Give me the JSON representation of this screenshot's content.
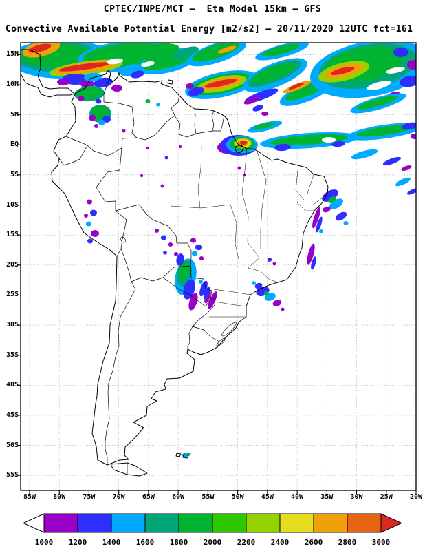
{
  "header": {
    "title_line1": "CPTEC/INPE/MCT –  Eta Model 15km – GFS",
    "title_line2": "Convective Available Potential Energy [m2/s2] – 20/11/2020 12UTC fct=161"
  },
  "chart_data": {
    "type": "heatmap",
    "title": "CPTEC/INPE/MCT – Eta Model 15km – GFS",
    "subtitle": "Convective Available Potential Energy [m2/s2] – 20/11/2020 12UTC fct=161",
    "variable": "Convective Available Potential Energy",
    "units": "m2/s2",
    "model": "Eta Model 15km",
    "initial_condition": "GFS",
    "valid": "20/11/2020 12UTC",
    "forecast_label": "fct=161",
    "grid": "5-degree dotted graticule",
    "background_note": "values below 1000 m2/s2 shown as white",
    "x_axis": {
      "ticks": [
        "85W",
        "80W",
        "75W",
        "70W",
        "65W",
        "60W",
        "55W",
        "50W",
        "45W",
        "40W",
        "35W",
        "30W",
        "25W",
        "20W"
      ],
      "lon_values": [
        -85,
        -80,
        -75,
        -70,
        -65,
        -60,
        -55,
        -50,
        -45,
        -40,
        -35,
        -30,
        -25,
        -20
      ]
    },
    "y_axis": {
      "ticks": [
        "15N",
        "10N",
        "5N",
        "EQ",
        "5S",
        "10S",
        "15S",
        "20S",
        "25S",
        "30S",
        "35S",
        "40S",
        "45S",
        "50S",
        "55S"
      ],
      "lat_values": [
        15,
        10,
        5,
        0,
        -5,
        -10,
        -15,
        -20,
        -25,
        -30,
        -35,
        -40,
        -45,
        -50,
        -55
      ]
    },
    "colorbar": {
      "labels": [
        "1000",
        "1200",
        "1400",
        "1600",
        "1800",
        "2000",
        "2200",
        "2400",
        "2600",
        "2800",
        "3000"
      ],
      "levels": [
        1000,
        1200,
        1400,
        1600,
        1800,
        2000,
        2200,
        2400,
        2600,
        2800,
        3000
      ],
      "segment_colors": [
        "#9A00C8",
        "#2E2EFF",
        "#00AAFF",
        "#00A578",
        "#00B432",
        "#2DC800",
        "#96D200",
        "#E6DC1E",
        "#F0A00A",
        "#E66414"
      ],
      "below_min_color": "#FFFFFF",
      "above_max_color": "#DC281E"
    },
    "high_cape_regions": [
      {
        "area": "Caribbean / Central America coast (87W-70W, 8N-16N)",
        "cape_m2s2": "1000-3000+",
        "note": "widespread field with embedded >2800 streaks"
      },
      {
        "area": "Tropical North Atlantic ITCZ (60W-20W, 0-16N)",
        "cape_m2s2": "1000-3000",
        "note": "diagonal banded streaks, orange/red cores near 45W 9N and 33W 12N"
      },
      {
        "area": "Amapa / Guianas coast near 50W 1N",
        "cape_m2s2": ">3000",
        "note": "strongest core on the map, ringed 1000-3000"
      },
      {
        "area": "Equatorial Atlantic band along 0-2N from 50W to 20W",
        "cape_m2s2": "1000-2000"
      },
      {
        "area": "Peruvian Andes foothills 70W-72W, 9S-16S",
        "cape_m2s2": "1000-1600",
        "note": "scattered small cells"
      },
      {
        "area": "Paraguay / Mato Grosso do Sul 56W-58W, 18S-24S",
        "cape_m2s2": "1000-2000",
        "note": "elongated N-S cluster"
      },
      {
        "area": "Southeast Brazil coast 42W-46W, 23S-26S",
        "cape_m2s2": "1000-1600"
      },
      {
        "area": "Northeast Brazil offshore 33W-37W, 8S-20S",
        "cape_m2s2": "1000-1600",
        "note": "thin coastal streaks"
      },
      {
        "area": "near Falkland Islands 58W-60W, 51S-52S",
        "cape_m2s2": "1400-1600",
        "note": "small isolated patch"
      }
    ]
  }
}
